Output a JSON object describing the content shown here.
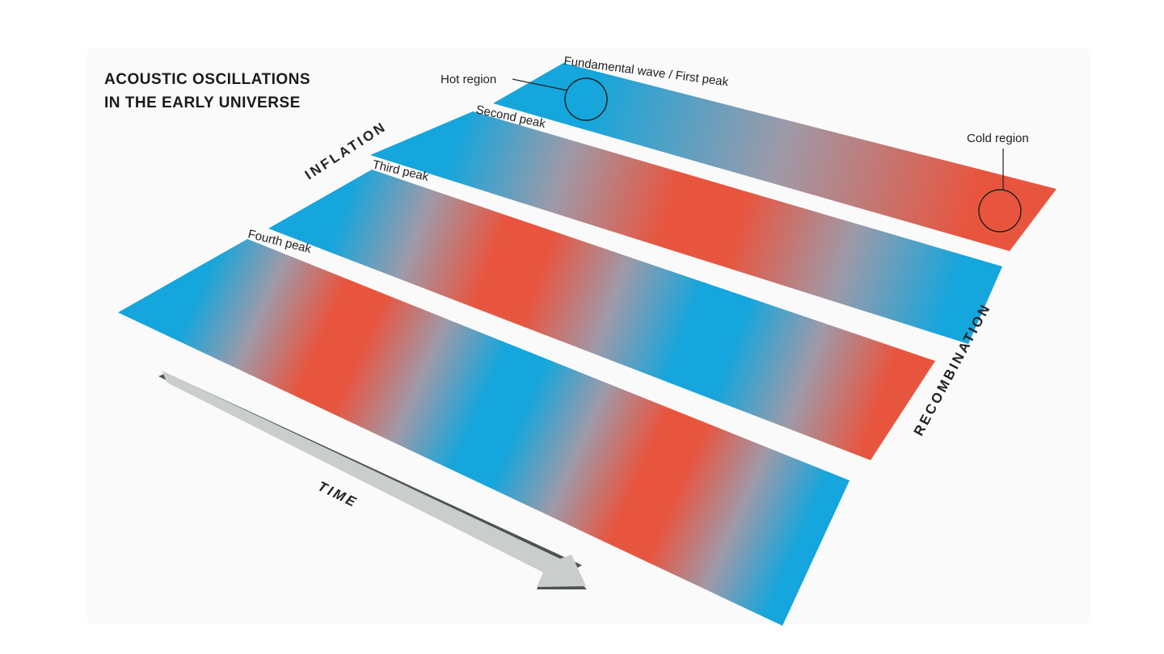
{
  "title": {
    "line1": "ACOUSTIC OSCILLATIONS",
    "line2": "IN THE EARLY UNIVERSE"
  },
  "colors": {
    "hot": "#14a6dc",
    "cold": "#e8553f",
    "neutral": "#9e9aa8",
    "arrow": "#c9cecd",
    "arrow_shadow": "#4e5352",
    "background": "#fbfafa"
  },
  "strips": [
    {
      "label": "Fundamental wave / First peak",
      "half_wavelengths": 1
    },
    {
      "label": "Second peak",
      "half_wavelengths": 2
    },
    {
      "label": "Third peak",
      "half_wavelengths": 3
    },
    {
      "label": "Fourth peak",
      "half_wavelengths": 4
    }
  ],
  "annotations": {
    "hot_region": "Hot region",
    "cold_region": "Cold region"
  },
  "axis_labels": {
    "start": "INFLATION",
    "end": "RECOMBINATION",
    "time": "TIME"
  }
}
